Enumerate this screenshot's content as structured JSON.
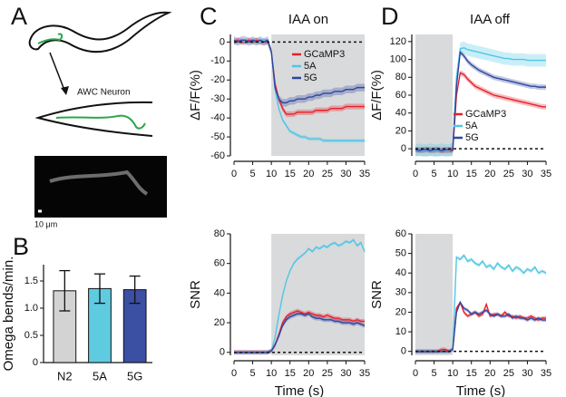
{
  "illustration": {
    "panel_label": "A",
    "neuron_label": "AWC Neuron",
    "scale_label": "10 μm"
  },
  "chart_data": [
    {
      "type": "bar",
      "panel_label": "B",
      "ylabel": "Omega bends/min.",
      "categories": [
        "N2",
        "5A",
        "5G"
      ],
      "values": [
        1.32,
        1.36,
        1.34
      ],
      "errors": [
        0.37,
        0.27,
        0.25
      ],
      "colors": [
        "#d3d3d3",
        "#5fcbe0",
        "#3b4fa3"
      ],
      "ylim": [
        0,
        1.8
      ],
      "yticks": [
        0,
        0.5,
        {
          "value": 1,
          "label": "1.0"
        },
        1.5
      ]
    },
    {
      "type": "line",
      "panel_label": "C",
      "title": "IAA on",
      "ylabel": "ΔF/F(%)",
      "legend": "upper right",
      "shaded_x": [
        10,
        35
      ],
      "hline": 0,
      "x": [
        0,
        1,
        2,
        3,
        4,
        5,
        6,
        7,
        8,
        9,
        10,
        11,
        12,
        13,
        14,
        15,
        16,
        17,
        18,
        19,
        20,
        21,
        22,
        23,
        24,
        25,
        26,
        27,
        28,
        29,
        30,
        31,
        32,
        33,
        34,
        35
      ],
      "xlim": [
        0,
        35
      ],
      "xticks": [
        0,
        5,
        10,
        15,
        20,
        25,
        30,
        35
      ],
      "ylim": [
        -60,
        4
      ],
      "yticks": [
        0,
        -10,
        -20,
        -30,
        -40,
        -50,
        -60
      ],
      "series": [
        {
          "name": "GCaMP3",
          "color": "#e8202a",
          "error": 1.5,
          "values": [
            0,
            1,
            0,
            0,
            1,
            0,
            1,
            0,
            0,
            0,
            -5,
            -22,
            -30,
            -35,
            -38,
            -38,
            -38,
            -37,
            -37,
            -37,
            -37,
            -37,
            -36,
            -36,
            -36,
            -36,
            -35,
            -35,
            -35,
            -35,
            -34,
            -34,
            -34,
            -34,
            -34,
            -34
          ]
        },
        {
          "name": "5A",
          "color": "#4fc6e4",
          "error": 1,
          "values": [
            0,
            0,
            1,
            0,
            0,
            1,
            0,
            0,
            1,
            0,
            -5,
            -25,
            -35,
            -41,
            -44,
            -47,
            -48,
            -49,
            -50,
            -50,
            -51,
            -51,
            -51,
            -51,
            -52,
            -52,
            -52,
            -52,
            -52,
            -52,
            -52,
            -52,
            -52,
            -52,
            -52,
            -52
          ]
        },
        {
          "name": "5G",
          "color": "#2e45a0",
          "error": 2,
          "values": [
            1,
            0,
            1,
            1,
            0,
            1,
            0,
            1,
            0,
            1,
            -5,
            -24,
            -30,
            -32,
            -32,
            -31,
            -31,
            -30,
            -30,
            -30,
            -29,
            -29,
            -28,
            -28,
            -27,
            -27,
            -27,
            -26,
            -26,
            -26,
            -25,
            -25,
            -25,
            -24,
            -24,
            -24
          ]
        }
      ]
    },
    {
      "type": "line",
      "panel_label": "D",
      "title": "IAA off",
      "ylabel": "ΔF/F(%)",
      "legend": "lower center",
      "shaded_x": [
        0,
        10
      ],
      "hline": 0,
      "x": [
        0,
        1,
        2,
        3,
        4,
        5,
        6,
        7,
        8,
        9,
        10,
        11,
        12,
        13,
        14,
        15,
        16,
        17,
        18,
        19,
        20,
        21,
        22,
        23,
        24,
        25,
        26,
        27,
        28,
        29,
        30,
        31,
        32,
        33,
        34,
        35
      ],
      "xlim": [
        0,
        35
      ],
      "xticks": [
        0,
        5,
        10,
        15,
        20,
        25,
        30,
        35
      ],
      "ylim": [
        -8,
        128
      ],
      "yticks": [
        0,
        20,
        40,
        60,
        80,
        100,
        120
      ],
      "series": [
        {
          "name": "GCaMP3",
          "color": "#e8202a",
          "error": 3,
          "values": [
            -1,
            -1,
            -2,
            -1,
            -1,
            -2,
            -1,
            -2,
            -2,
            -2,
            -2,
            60,
            85,
            83,
            78,
            74,
            70,
            68,
            66,
            64,
            62,
            60,
            59,
            58,
            57,
            56,
            55,
            54,
            53,
            52,
            51,
            50,
            49,
            48,
            47,
            47
          ]
        },
        {
          "name": "5A",
          "color": "#4fc6e4",
          "error": 7,
          "values": [
            -2,
            -1,
            -2,
            -2,
            -1,
            -2,
            -2,
            -1,
            -2,
            -2,
            0,
            80,
            112,
            113,
            111,
            110,
            109,
            108,
            107,
            106,
            105,
            104,
            103,
            102,
            101,
            101,
            100,
            100,
            100,
            100,
            99,
            99,
            99,
            99,
            99,
            99
          ]
        },
        {
          "name": "5G",
          "color": "#2e45a0",
          "error": 3,
          "values": [
            -1,
            -2,
            -1,
            -1,
            -2,
            -1,
            -1,
            -2,
            -1,
            -1,
            -1,
            70,
            108,
            104,
            98,
            94,
            91,
            88,
            86,
            84,
            82,
            80,
            79,
            78,
            77,
            76,
            75,
            74,
            73,
            72,
            71,
            70,
            70,
            69,
            69,
            69
          ]
        }
      ]
    },
    {
      "type": "line",
      "panel_label": "",
      "xlabel": "Time (s)",
      "ylabel": "SNR",
      "shaded_x": [
        10,
        35
      ],
      "hline": 0,
      "x": [
        0,
        1,
        2,
        3,
        4,
        5,
        6,
        7,
        8,
        9,
        10,
        11,
        12,
        13,
        14,
        15,
        16,
        17,
        18,
        19,
        20,
        21,
        22,
        23,
        24,
        25,
        26,
        27,
        28,
        29,
        30,
        31,
        32,
        33,
        34,
        35
      ],
      "xlim": [
        0,
        35
      ],
      "xticks": [
        0,
        5,
        10,
        15,
        20,
        25,
        30,
        35
      ],
      "ylim": [
        -2,
        80
      ],
      "yticks": [
        0,
        20,
        40,
        60,
        80
      ],
      "series": [
        {
          "name": "GCaMP3",
          "color": "#e8202a",
          "error": 1.5,
          "values": [
            0,
            0,
            0,
            0,
            0,
            0,
            0,
            0,
            0,
            0,
            1,
            5,
            12,
            20,
            24,
            26,
            27,
            28,
            27,
            26,
            27,
            26,
            25,
            25,
            24,
            25,
            24,
            23,
            23,
            22,
            22,
            22,
            21,
            22,
            21,
            21
          ]
        },
        {
          "name": "5A",
          "color": "#4fc6e4",
          "error": 1,
          "values": [
            0,
            0,
            0,
            0,
            0,
            0,
            0,
            0,
            0,
            0,
            1,
            10,
            25,
            38,
            48,
            55,
            60,
            63,
            65,
            67,
            70,
            68,
            71,
            70,
            72,
            71,
            73,
            74,
            72,
            73,
            75,
            74,
            76,
            72,
            74,
            68
          ]
        },
        {
          "name": "5G",
          "color": "#2e45a0",
          "error": 1.5,
          "values": [
            0,
            0,
            0,
            0,
            0,
            0,
            0,
            0,
            0,
            0,
            1,
            5,
            11,
            18,
            22,
            24,
            25,
            26,
            26,
            25,
            26,
            24,
            23,
            23,
            22,
            22,
            22,
            21,
            21,
            20,
            20,
            20,
            19,
            20,
            19,
            18
          ]
        }
      ]
    },
    {
      "type": "line",
      "panel_label": "",
      "xlabel": "Time (s)",
      "ylabel": "SNR",
      "shaded_x": [
        0,
        10
      ],
      "hline": 0,
      "x": [
        0,
        1,
        2,
        3,
        4,
        5,
        6,
        7,
        8,
        9,
        10,
        11,
        12,
        13,
        14,
        15,
        16,
        17,
        18,
        19,
        20,
        21,
        22,
        23,
        24,
        25,
        26,
        27,
        28,
        29,
        30,
        31,
        32,
        33,
        34,
        35
      ],
      "xlim": [
        0,
        35
      ],
      "xticks": [
        0,
        5,
        10,
        15,
        20,
        25,
        30,
        35
      ],
      "ylim": [
        -2,
        60
      ],
      "yticks": [
        0,
        10,
        20,
        30,
        40,
        50,
        60
      ],
      "series": [
        {
          "name": "GCaMP3",
          "color": "#e8202a",
          "error": 1,
          "values": [
            0,
            0,
            0,
            0,
            0,
            0,
            0,
            1,
            1,
            0,
            1,
            22,
            25,
            20,
            18,
            19,
            20,
            18,
            19,
            24,
            18,
            19,
            19,
            18,
            20,
            18,
            18,
            17,
            18,
            17,
            17,
            18,
            17,
            16,
            17,
            17
          ]
        },
        {
          "name": "5A",
          "color": "#4fc6e4",
          "error": 1,
          "values": [
            0,
            0,
            0,
            0,
            0,
            0,
            0,
            0,
            0,
            0,
            1,
            48,
            47,
            49,
            46,
            47,
            45,
            44,
            46,
            43,
            44,
            42,
            45,
            43,
            42,
            44,
            41,
            43,
            42,
            40,
            42,
            41,
            43,
            40,
            41,
            40
          ]
        },
        {
          "name": "5G",
          "color": "#2e45a0",
          "error": 1,
          "values": [
            0,
            0,
            0,
            0,
            0,
            0,
            0,
            0,
            0,
            0,
            1,
            20,
            25,
            22,
            21,
            19,
            20,
            19,
            20,
            21,
            19,
            18,
            19,
            18,
            18,
            19,
            17,
            18,
            17,
            17,
            16,
            17,
            16,
            17,
            16,
            16
          ]
        }
      ]
    }
  ]
}
